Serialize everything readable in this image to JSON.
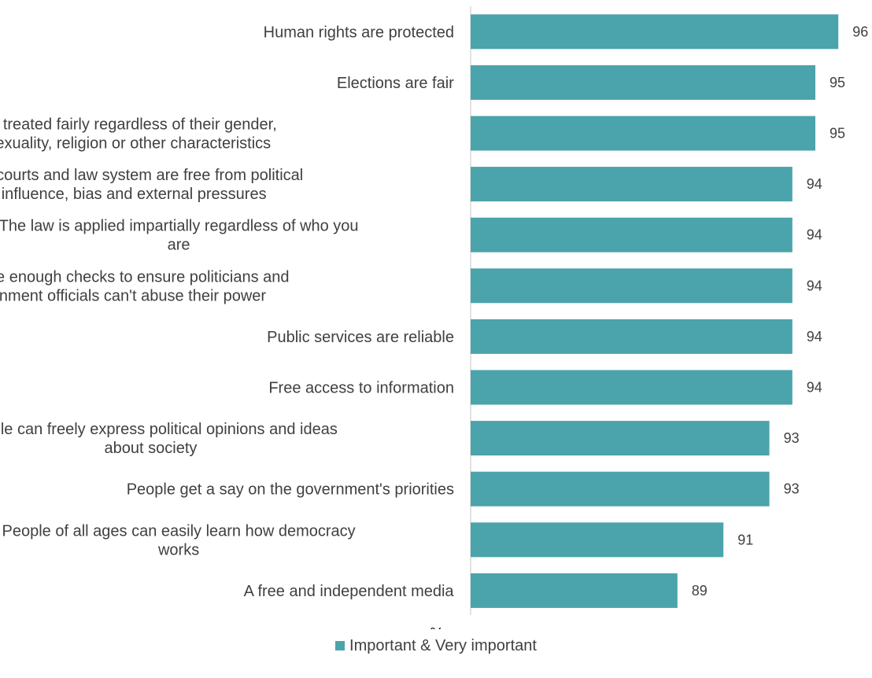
{
  "chart_data": {
    "type": "bar",
    "orientation": "horizontal",
    "categories": [
      "Human rights are protected",
      "Elections are fair",
      "Everyone is treated fairly regardless of their gender,\nethnicity, sexuality, religion or other characteristics",
      "The courts and law system are free from political\ninfluence, bias and external pressures",
      "The law is applied impartially regardless of who you\nare",
      "There are enough checks to ensure politicians and\ngovernment officials can't abuse their power",
      "Public services are reliable",
      "Free access to information",
      "People can freely express political opinions and ideas\nabout society",
      "People get a say on the government's priorities",
      "People of all ages can easily learn how democracy\nworks",
      "A free and independent media"
    ],
    "series": [
      {
        "name": "Important & Very important",
        "values": [
          96,
          95,
          95,
          94,
          94,
          94,
          94,
          94,
          93,
          93,
          91,
          89
        ],
        "color": "#4ba3ab"
      }
    ],
    "xlabel": "%",
    "axis_min": 80,
    "legend_position": "bottom",
    "grid": false
  }
}
